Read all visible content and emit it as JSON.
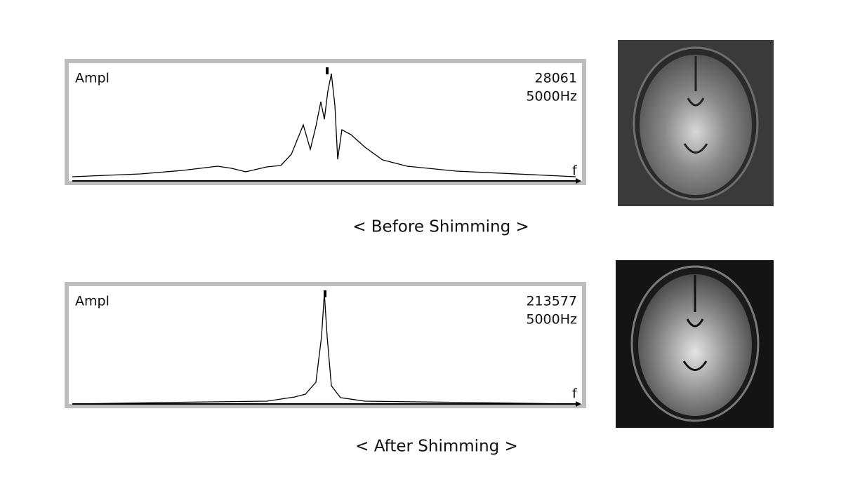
{
  "panels": [
    {
      "y_label": "Ampl",
      "peak": "28061",
      "span": "5000Hz",
      "x_label": "f",
      "caption": "< Before Shimming >"
    },
    {
      "y_label": "Ampl",
      "peak": "213577",
      "span": "5000Hz",
      "x_label": "f",
      "caption": "< After Shimming >"
    }
  ]
}
